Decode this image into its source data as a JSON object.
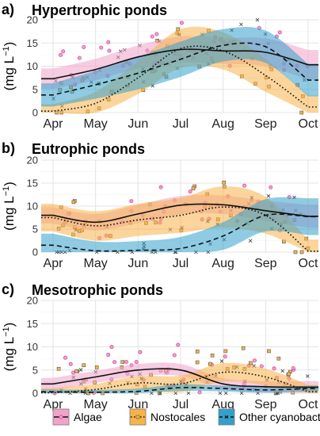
{
  "chart_data": [
    {
      "type": "line",
      "panel_label": "a)",
      "title": "Hypertrophic ponds",
      "ylabel": "(mg L",
      "ylabel_sup": "−1",
      "ylabel_close": ")",
      "ylim": [
        0,
        20
      ],
      "yticks": [
        0,
        5,
        10,
        15,
        20
      ],
      "categories": [
        "Apr",
        "May",
        "Jun",
        "Jul",
        "Aug",
        "Sep",
        "Oct"
      ],
      "series": [
        {
          "name": "Algae",
          "style": "solid",
          "x": [
            1,
            2,
            3,
            4,
            5,
            6,
            7
          ],
          "values": [
            7.3,
            9.3,
            12.0,
            13.6,
            13.3,
            13.0,
            10.3
          ],
          "band": [
            2.2,
            2.3,
            2.5,
            2.8,
            2.8,
            3.0,
            3.2
          ]
        },
        {
          "name": "Nostocales",
          "style": "dotted",
          "x": [
            1,
            2,
            3,
            4,
            5,
            6,
            7
          ],
          "values": [
            0.3,
            2.0,
            7.5,
            13.8,
            13.3,
            8.0,
            1.2
          ],
          "band": [
            1.5,
            2.5,
            3.5,
            4.2,
            4.0,
            3.5,
            2.5
          ]
        },
        {
          "name": "Other cyanobacteria",
          "style": "dashed",
          "x": [
            1,
            2,
            3,
            4,
            5,
            6,
            7
          ],
          "values": [
            3.8,
            6.0,
            8.5,
            11.5,
            14.5,
            14.2,
            7.0
          ],
          "band": [
            2.5,
            3.0,
            3.5,
            3.8,
            3.5,
            3.5,
            3.5
          ]
        }
      ]
    },
    {
      "type": "line",
      "panel_label": "b)",
      "title": "Eutrophic ponds",
      "ylabel": "(mg L",
      "ylabel_sup": "−1",
      "ylabel_close": ")",
      "ylim": [
        0,
        20
      ],
      "yticks": [
        0,
        5,
        10,
        15,
        20
      ],
      "categories": [
        "Apr",
        "May",
        "Jun",
        "Jul",
        "Aug",
        "Sep",
        "Oct"
      ],
      "series": [
        {
          "name": "Algae",
          "style": "solid",
          "x": [
            1,
            2,
            3,
            4,
            5,
            6,
            7
          ],
          "values": [
            8.0,
            6.5,
            8.3,
            10.2,
            10.3,
            9.0,
            7.8
          ],
          "band": [
            1.8,
            1.8,
            2.0,
            2.0,
            2.0,
            2.2,
            2.5
          ]
        },
        {
          "name": "Nostocales",
          "style": "dotted",
          "x": [
            1,
            2,
            3,
            4,
            5,
            6,
            7
          ],
          "values": [
            7.5,
            5.7,
            7.0,
            8.0,
            9.8,
            8.0,
            0.2
          ],
          "band": [
            3.0,
            3.2,
            3.5,
            3.8,
            4.5,
            4.0,
            2.5
          ]
        },
        {
          "name": "Other cyanobacteria",
          "style": "dashed",
          "x": [
            1,
            2,
            3,
            4,
            5,
            6,
            7
          ],
          "values": [
            1.5,
            0.3,
            0.4,
            0.8,
            3.5,
            8.0,
            7.7
          ],
          "band": [
            2.5,
            2.0,
            2.0,
            2.5,
            3.0,
            3.5,
            4.0
          ]
        }
      ]
    },
    {
      "type": "line",
      "panel_label": "c)",
      "title": "Mesotrophic ponds",
      "ylabel": "(mg L",
      "ylabel_sup": "−1",
      "ylabel_close": ")",
      "ylim": [
        0,
        20
      ],
      "yticks": [
        0,
        5,
        10,
        15,
        20
      ],
      "categories": [
        "Apr",
        "May",
        "Jun",
        "Jul",
        "Aug",
        "Sep",
        "Oct"
      ],
      "series": [
        {
          "name": "Algae",
          "style": "solid",
          "x": [
            1,
            2,
            3,
            4,
            5,
            6,
            7
          ],
          "values": [
            2.0,
            3.5,
            5.0,
            5.0,
            2.0,
            1.4,
            1.3
          ],
          "band": [
            1.3,
            1.3,
            1.3,
            1.3,
            1.2,
            1.2,
            1.3
          ]
        },
        {
          "name": "Nostocales",
          "style": "dotted",
          "x": [
            1,
            2,
            3,
            4,
            5,
            6,
            7
          ],
          "values": [
            0.1,
            0.8,
            2.2,
            2.0,
            4.5,
            3.5,
            0.3
          ],
          "band": [
            1.0,
            1.2,
            1.5,
            1.8,
            2.0,
            1.8,
            1.5
          ]
        },
        {
          "name": "Other cyanobacteria",
          "style": "dashed",
          "x": [
            1,
            2,
            3,
            4,
            5,
            6,
            7
          ],
          "values": [
            0.3,
            0.2,
            0.4,
            1.2,
            1.0,
            0.7,
            1.0
          ],
          "band": [
            0.5,
            0.5,
            0.6,
            0.7,
            0.6,
            0.6,
            0.6
          ]
        }
      ]
    }
  ],
  "legend": [
    {
      "label": "Algae",
      "marker": "circle"
    },
    {
      "label": "Nostocales",
      "marker": "square"
    },
    {
      "label": "Other cyanobacteria",
      "marker": "cross"
    }
  ],
  "colors": {
    "algae_band": "#f0a3c9",
    "algae_point": "#d64aa0",
    "nostocales_band": "#f8b348",
    "nostocales_point": "#e69a20",
    "other_band": "#33a0cc",
    "other_point": "#333333",
    "grid": "#e3e3e3",
    "grid_minor": "#f0f0f0",
    "line": "#111111"
  }
}
